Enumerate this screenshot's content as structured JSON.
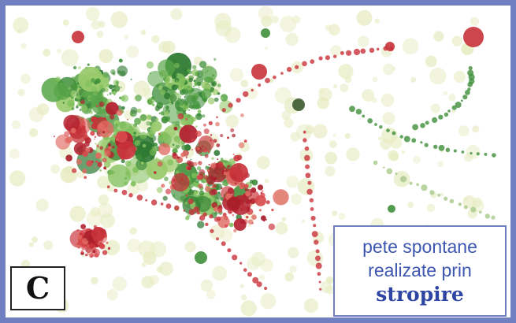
{
  "panel": {
    "letter": "C",
    "caption": {
      "line1": "pete spontane",
      "line2": "realizate prin",
      "line3": "stropire"
    }
  },
  "colors": {
    "border": "#6f7fc0",
    "caption_text": "#3d56b0",
    "splatter_red": "#c8323a",
    "splatter_green": "#3f8f3a",
    "splatter_pale": "#e7ecc2"
  }
}
